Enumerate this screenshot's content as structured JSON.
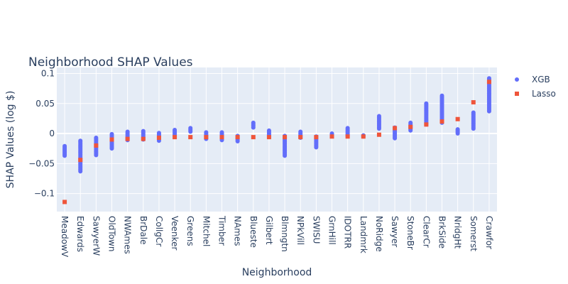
{
  "chart_data": {
    "type": "scatter",
    "title": "Neighborhood SHAP Values",
    "xlabel": "Neighborhood",
    "ylabel": "SHAP Values (log $)",
    "ylim": [
      -0.13,
      0.11
    ],
    "yticks": [
      -0.1,
      -0.05,
      0,
      0.05,
      0.1
    ],
    "ytick_labels": [
      "−0.1",
      "−0.05",
      "0",
      "0.05",
      "0.1"
    ],
    "grid": true,
    "legend_position": "top-right",
    "categories": [
      "MeadowV",
      "Edwards",
      "SawyerW",
      "OldTown",
      "NWAmes",
      "BrDale",
      "CollgCr",
      "Veenker",
      "Greens",
      "Mitchel",
      "Timber",
      "NAmes",
      "Blueste",
      "Gilbert",
      "Blmngtn",
      "NPkVill",
      "SWISU",
      "GrnHill",
      "IDOTRR",
      "Landmrk",
      "NoRidge",
      "Sawyer",
      "StoneBr",
      "ClearCr",
      "BrkSide",
      "NridgHt",
      "Somerst",
      "Crawfor"
    ],
    "series": [
      {
        "name": "XGB",
        "color": "#636efa",
        "marker": "circle",
        "ranges": [
          [
            -0.037,
            -0.021
          ],
          [
            -0.063,
            -0.012
          ],
          [
            -0.036,
            -0.007
          ],
          [
            -0.025,
            -0.001
          ],
          [
            -0.011,
            0.003
          ],
          [
            -0.01,
            0.004
          ],
          [
            -0.012,
            0.001
          ],
          [
            -0.004,
            0.006
          ],
          [
            0.003,
            0.009
          ],
          [
            -0.009,
            0.002
          ],
          [
            -0.011,
            0.002
          ],
          [
            -0.013,
            -0.004
          ],
          [
            0.01,
            0.018
          ],
          [
            -0.006,
            0.005
          ],
          [
            -0.037,
            -0.004
          ],
          [
            -0.007,
            0.003
          ],
          [
            -0.023,
            -0.005
          ],
          [
            -0.003,
            0.0
          ],
          [
            -0.004,
            0.009
          ],
          [
            -0.005,
            -0.003
          ],
          [
            0.008,
            0.029
          ],
          [
            -0.008,
            0.01
          ],
          [
            0.005,
            0.018
          ],
          [
            0.015,
            0.05
          ],
          [
            0.018,
            0.063
          ],
          [
            0.0,
            0.007
          ],
          [
            0.008,
            0.035
          ],
          [
            0.037,
            0.092
          ]
        ]
      },
      {
        "name": "Lasso",
        "color": "#ef553b",
        "marker": "square",
        "values": [
          -0.114,
          -0.044,
          -0.02,
          -0.01,
          -0.009,
          -0.009,
          -0.007,
          -0.006,
          -0.006,
          -0.006,
          -0.006,
          -0.006,
          -0.006,
          -0.006,
          -0.006,
          -0.006,
          -0.006,
          -0.005,
          -0.005,
          -0.005,
          -0.002,
          0.009,
          0.011,
          0.015,
          0.02,
          0.024,
          0.052,
          0.086
        ]
      }
    ]
  }
}
